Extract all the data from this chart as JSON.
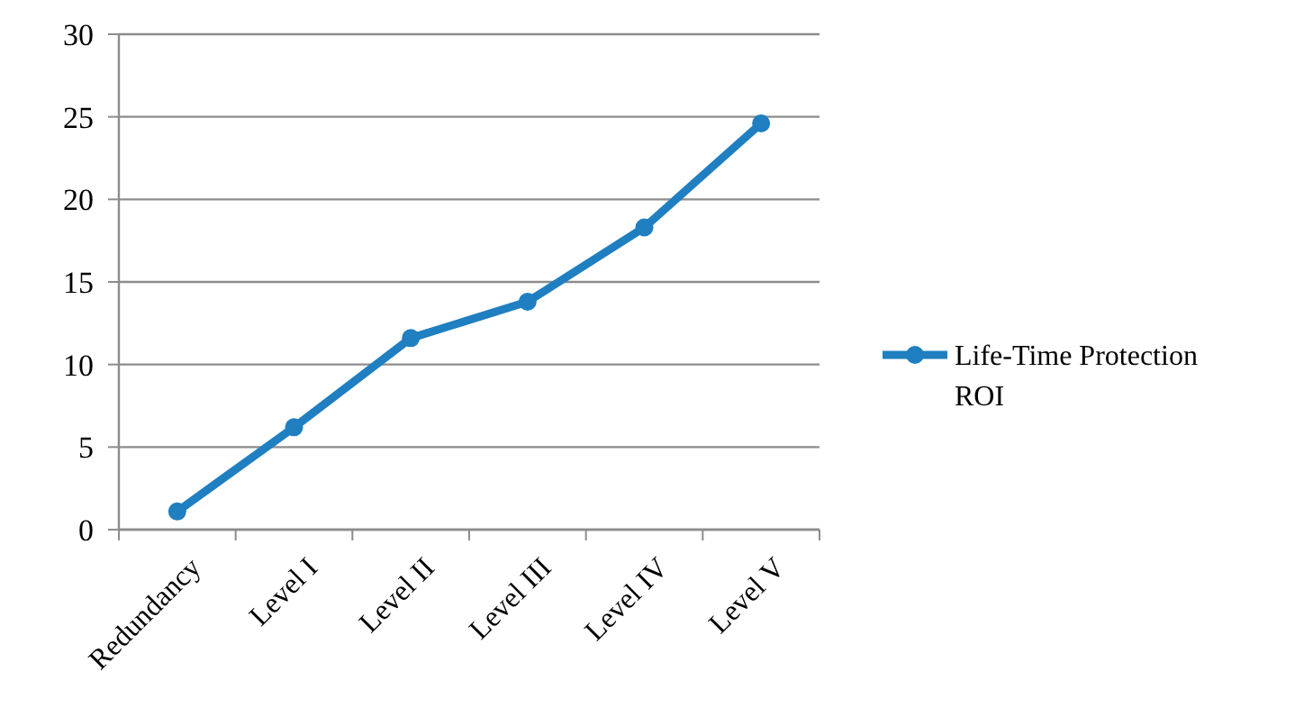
{
  "chart_data": {
    "type": "line",
    "categories": [
      "Redundancy",
      "Level I",
      "Level II",
      "Level III",
      "Level IV",
      "Level V"
    ],
    "series": [
      {
        "name": "Life-Time Protection ROI",
        "color": "#1f7fc0",
        "values": [
          1.1,
          6.2,
          11.6,
          13.8,
          18.3,
          24.6
        ]
      }
    ],
    "ylim": [
      0,
      30
    ],
    "yticks": [
      0,
      5,
      10,
      15,
      20,
      25,
      30
    ],
    "grid": "y",
    "legend": "right",
    "marker": "circle",
    "line_style": "solid"
  }
}
